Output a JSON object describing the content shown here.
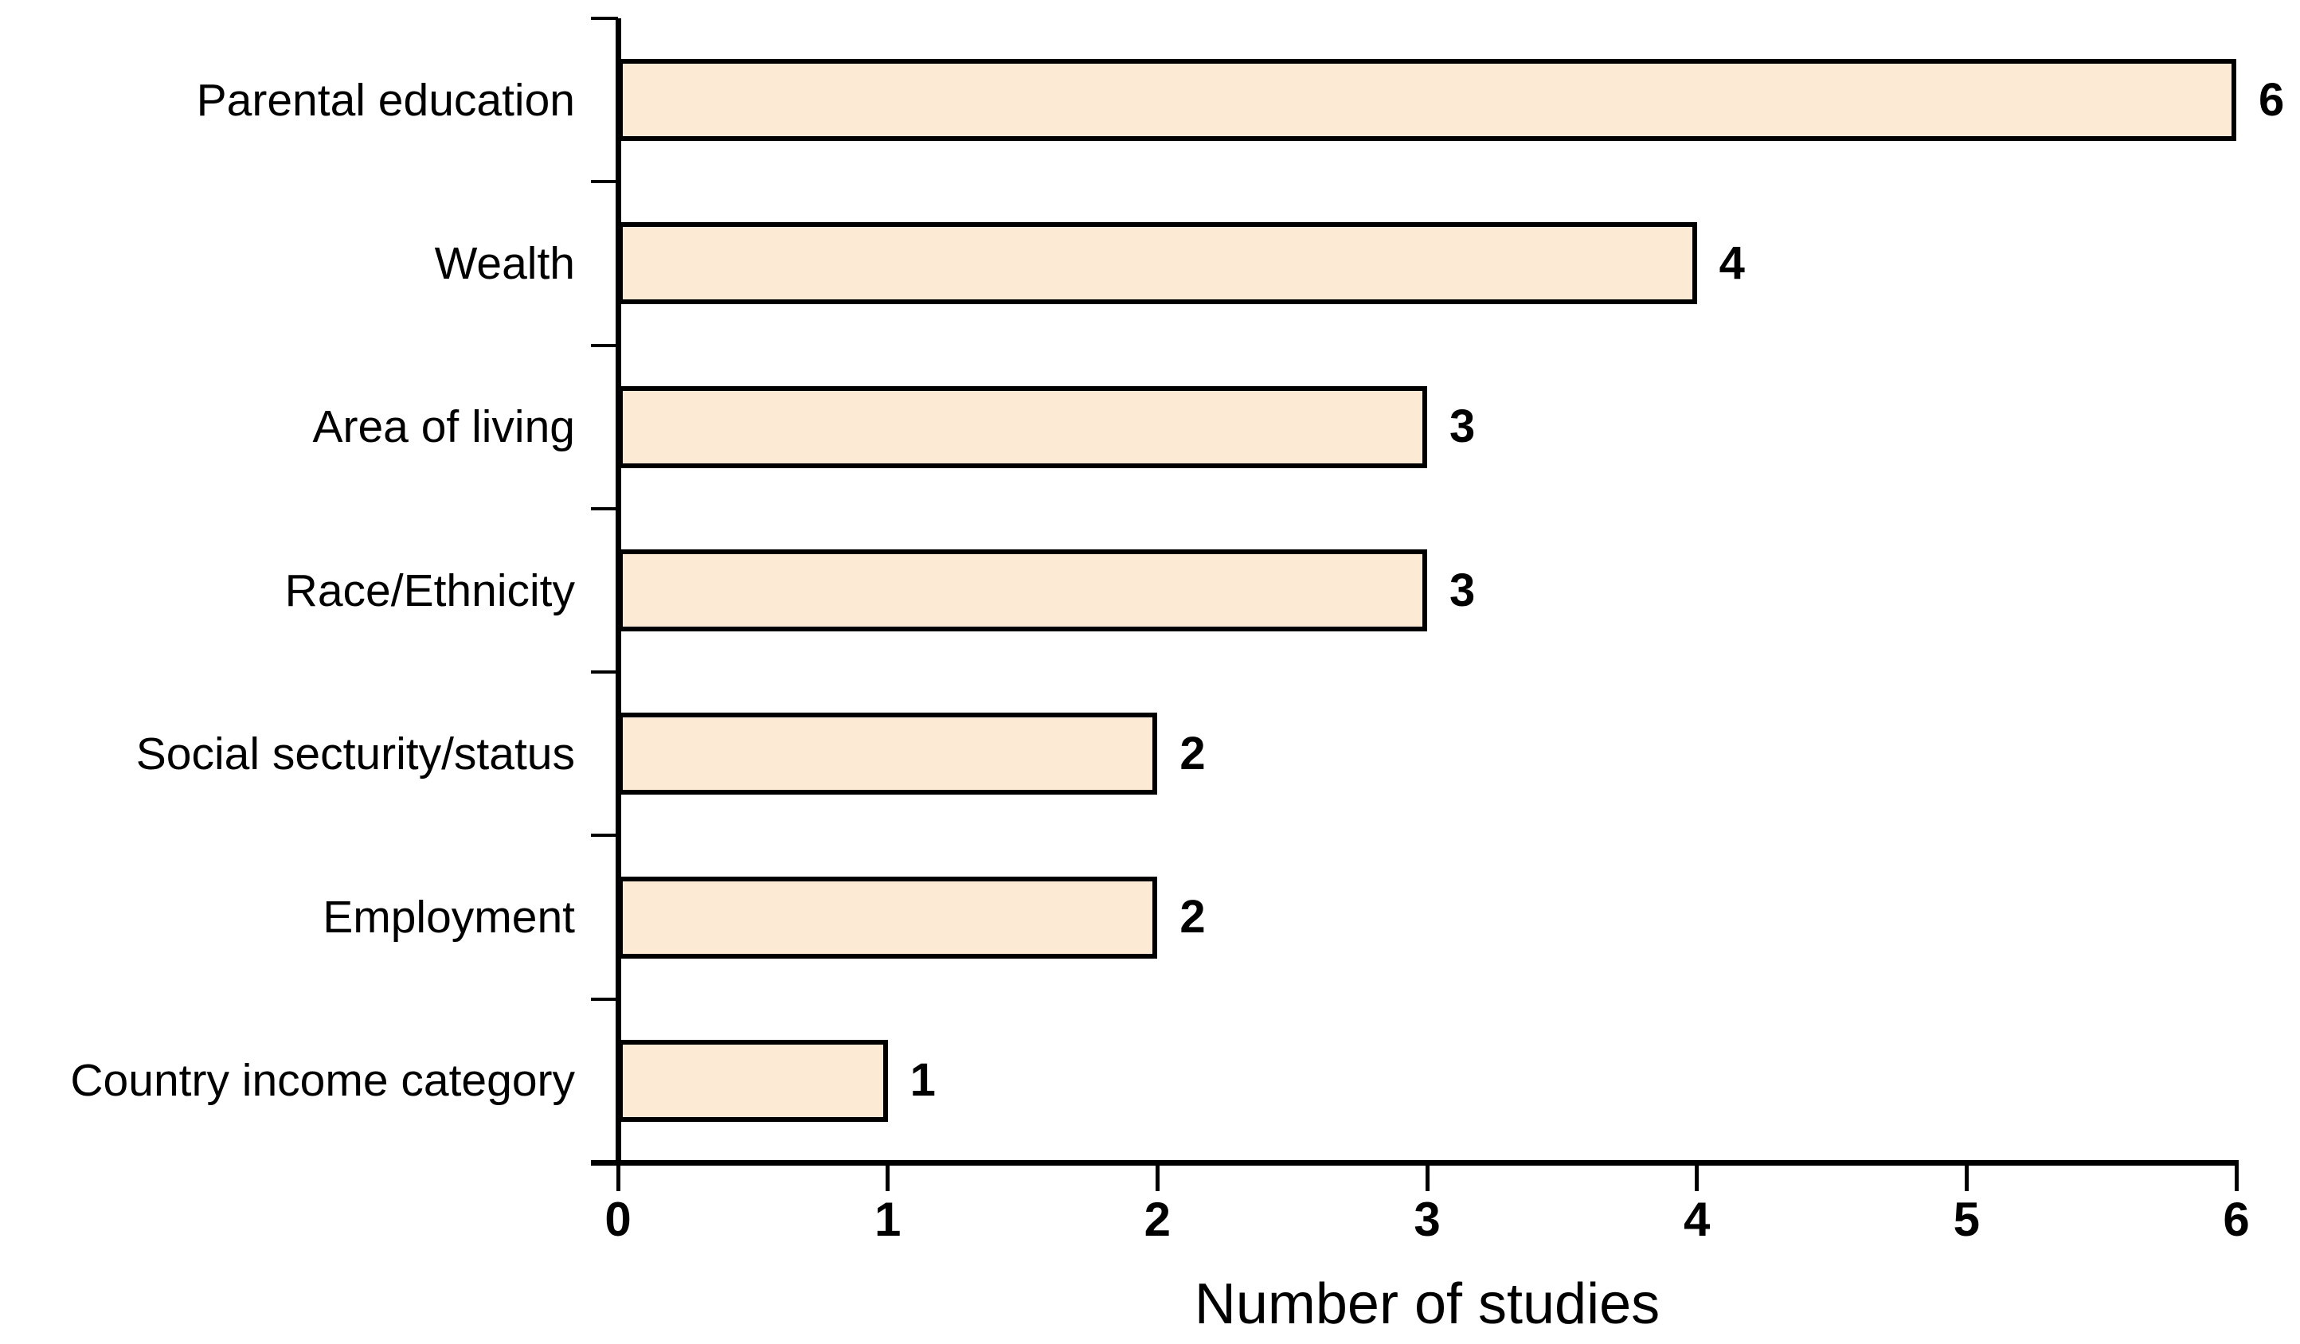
{
  "chart_data": {
    "type": "bar",
    "orientation": "horizontal",
    "title": "",
    "categories": [
      "Parental education",
      "Wealth",
      "Area of living",
      "Race/Ethnicity",
      "Social secturity/status",
      "Employment",
      "Country income category"
    ],
    "values": [
      6,
      4,
      3,
      3,
      2,
      2,
      1
    ],
    "value_labels": [
      "6",
      "4",
      "3",
      "3",
      "2",
      "2",
      "1"
    ],
    "xlabel": "Number of studies",
    "ylabel": "",
    "xlim": [
      0,
      6
    ],
    "x_ticks": [
      "0",
      "1",
      "2",
      "3",
      "4",
      "5",
      "6"
    ],
    "grid": false,
    "legend": false,
    "colors": {
      "bar_fill": "#fcead5",
      "bar_border": "#000000",
      "axis": "#000000",
      "text": "#000000"
    }
  }
}
